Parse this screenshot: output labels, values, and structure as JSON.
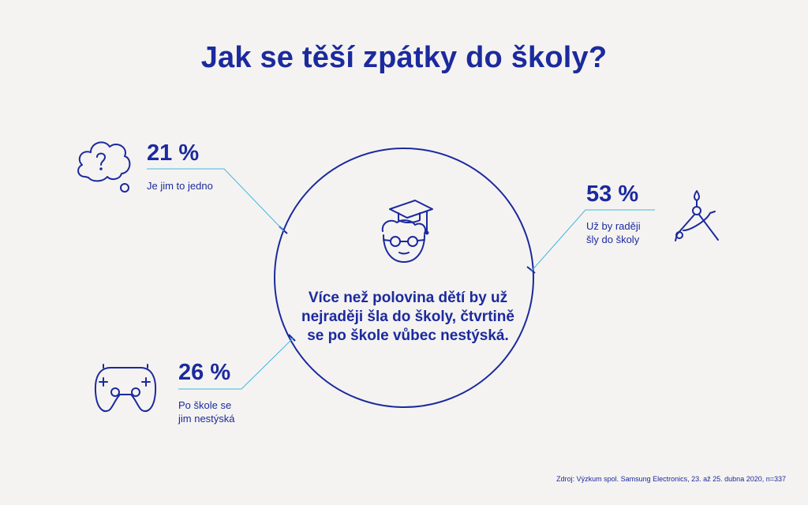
{
  "title": "Jak se těší zpátky do školy?",
  "center_text": "Více než polovina dětí by už nejraději šla do školy, čtvrtině se po škole vůbec nestýská.",
  "source": "Zdroj: Výzkum spol. Samsung Electronics, 23. až 25. dubna 2020, n=337",
  "colors": {
    "primary": "#1b2a9e",
    "accent_line": "#3fb8e0",
    "background": "#f5f3f1"
  },
  "chart_data": {
    "type": "pie",
    "title": "Jak se těší zpátky do školy?",
    "slices": [
      {
        "value_label": "21 %",
        "value": 21,
        "label": "Je jim to jedno",
        "icon": "question-cloud-icon"
      },
      {
        "value_label": "53 %",
        "value": 53,
        "label": "Už by raději šly do školy",
        "icon": "compass-icon"
      },
      {
        "value_label": "26 %",
        "value": 26,
        "label": "Po škole se jim nestýská",
        "icon": "gamepad-icon"
      }
    ],
    "center_icon": "graduate-student-icon"
  }
}
